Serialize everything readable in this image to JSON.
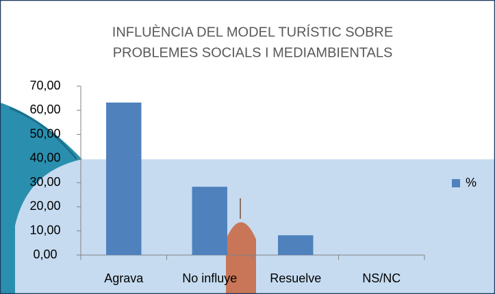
{
  "chart_data": {
    "type": "bar",
    "title": [
      "INFLUÈNCIA DEL MODEL TURÍSTIC SOBRE",
      "PROBLEMES SOCIALS I MEDIAMBIENTALS"
    ],
    "categories": [
      "Agrava",
      "No influye",
      "Resuelve",
      "NS/NC"
    ],
    "series": [
      {
        "name": "%",
        "color": "#4f81bd",
        "values": [
          63.2,
          28.3,
          8.2,
          0
        ]
      }
    ],
    "ylim": [
      0,
      70
    ],
    "yticks": [
      {
        "value": 0,
        "label": "0,00"
      },
      {
        "value": 10,
        "label": "10,00"
      },
      {
        "value": 20,
        "label": "20,00"
      },
      {
        "value": 30,
        "label": "30,00"
      },
      {
        "value": 40,
        "label": "40,00"
      },
      {
        "value": 50,
        "label": "50,00"
      },
      {
        "value": 60,
        "label": "60,00"
      },
      {
        "value": 70,
        "label": "70,00"
      }
    ],
    "grid": false,
    "legend": "right"
  }
}
